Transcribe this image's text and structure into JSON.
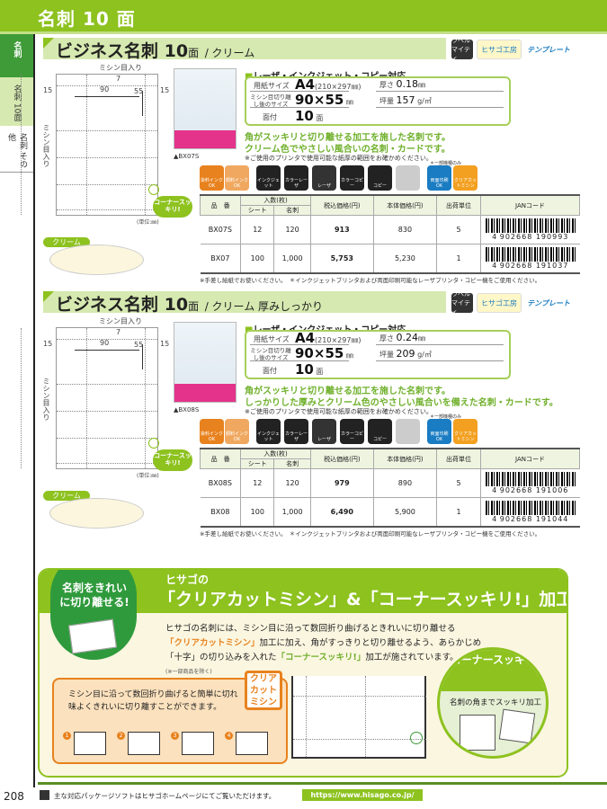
{
  "header": {
    "title": "名刺 10 面"
  },
  "side_tabs": [
    {
      "label": "名刺"
    },
    {
      "label": "名刺 10面"
    },
    {
      "label": "名刺 その他"
    }
  ],
  "logos": {
    "label_software": "ラベルマイティ",
    "hisago_kobo": "ヒサゴ工房",
    "template": "テンプレート"
  },
  "sections": [
    {
      "title_main": "ビジネス名刺 10",
      "title_unit": "面",
      "title_sub": "/ クリーム",
      "color_label": "クリーム",
      "diagram": {
        "perforation_top": "ミシン目入り",
        "perforation_side": "ミシン目入り",
        "dim_width": "90",
        "dim_height": "55",
        "dim_gap": "7",
        "margin_left": "15",
        "margin_right": "15",
        "unit": "(単位:㎜)"
      },
      "image_caption": "▲BX07S",
      "compat_heading": "レーザ・インクジェット・コピー対応",
      "specs": {
        "paper_size_label": "用紙サイズ",
        "paper_size": "A4",
        "paper_size_mm": "(210×297㎜)",
        "cut_size_label": "ミシン目切り離し後のサイズ",
        "cut_size": "90×55",
        "cut_unit": "㎜",
        "faces_label": "面付",
        "faces": "10",
        "faces_unit": "面",
        "thickness_label": "厚さ",
        "thickness": "0.18",
        "thickness_unit": "㎜",
        "weight_label": "坪量",
        "weight": "157",
        "weight_unit": "g/㎡"
      },
      "desc": [
        "角がスッキリと切り離せる加工を施した名刺です。",
        "クリーム色でやさしい風合いの名刺・カードです。"
      ],
      "note": "※ご使用のプリンタで使用可能な紙厚の範囲をお確かめください。",
      "corner_badge": "コーナースッキリ!",
      "rows": [
        {
          "code": "BX07S",
          "sheets": "12",
          "cards": "120",
          "price_tax": "913",
          "price": "830",
          "unit": "5",
          "jan_prefix": "4",
          "jan": "902668 190993"
        },
        {
          "code": "BX07",
          "sheets": "100",
          "cards": "1,000",
          "price_tax": "5,753",
          "price": "5,230",
          "unit": "1",
          "jan_prefix": "4",
          "jan": "902668 191037"
        }
      ],
      "footnote": "※手差し給紙でお使いください。　＊インクジェットプリンタおよび両面印刷可能なレーザプリンタ・コピー機をご使用ください。"
    },
    {
      "title_main": "ビジネス名刺 10",
      "title_unit": "面",
      "title_sub": "/ クリーム 厚みしっかり",
      "color_label": "クリーム",
      "diagram": {
        "perforation_top": "ミシン目入り",
        "perforation_side": "ミシン目入り",
        "dim_width": "90",
        "dim_height": "55",
        "dim_gap": "7",
        "margin_left": "15",
        "margin_right": "15",
        "unit": "(単位:㎜)"
      },
      "image_caption": "▲BX08S",
      "compat_heading": "レーザ・インクジェット・コピー対応",
      "specs": {
        "paper_size_label": "用紙サイズ",
        "paper_size": "A4",
        "paper_size_mm": "(210×297㎜)",
        "cut_size_label": "ミシン目切り離し後のサイズ",
        "cut_size": "90×55",
        "cut_unit": "㎜",
        "faces_label": "面付",
        "faces": "10",
        "faces_unit": "面",
        "thickness_label": "厚さ",
        "thickness": "0.24",
        "thickness_unit": "㎜",
        "weight_label": "坪量",
        "weight": "209",
        "weight_unit": "g/㎡"
      },
      "desc": [
        "角がスッキリと切り離せる加工を施した名刺です。",
        "しっかりした厚みとクリーム色のやさしい風合いを備えた名刺・カードです。"
      ],
      "note": "※ご使用のプリンタで使用可能な紙厚の範囲をお確かめください。",
      "corner_badge": "コーナースッキリ!",
      "rows": [
        {
          "code": "BX08S",
          "sheets": "12",
          "cards": "120",
          "price_tax": "979",
          "price": "890",
          "unit": "5",
          "jan_prefix": "4",
          "jan": "902668 191006"
        },
        {
          "code": "BX08",
          "sheets": "100",
          "cards": "1,000",
          "price_tax": "6,490",
          "price": "5,900",
          "unit": "1",
          "jan_prefix": "4",
          "jan": "902668 191044"
        }
      ],
      "footnote": "※手差し給紙でお使いください。　＊インクジェットプリンタおよび両面印刷可能なレーザプリンタ・コピー機をご使用ください。"
    }
  ],
  "icons": [
    {
      "label": "染料インクOK",
      "color": "#e8821e"
    },
    {
      "label": "顔料インクOK",
      "color": "#f0a860"
    },
    {
      "label": "インクジェット",
      "color": "#222"
    },
    {
      "label": "カラーレーザ",
      "color": "#222"
    },
    {
      "label": "レーザ",
      "color": "#333"
    },
    {
      "label": "カラーコピー",
      "color": "#222"
    },
    {
      "label": "コピー",
      "color": "#222"
    },
    {
      "label": "",
      "color": "#ccc"
    },
    {
      "label": "両面印刷OK",
      "color": "#1a7cc2"
    },
    {
      "label": "クリアカットミシン",
      "color": "#f3a020"
    }
  ],
  "icon_note": "＊一部機種のみ",
  "table_headers": {
    "code": "品　番",
    "qty": "入数(枚)",
    "sheets": "シート",
    "cards": "名刺",
    "price_tax": "税込価格(円)",
    "price": "本体価格(円)",
    "unit": "出荷単位",
    "jan": "JANコード"
  },
  "promo": {
    "badge": "名刺をきれいに切り離せる!",
    "title_small": "ヒサゴの",
    "title": "「クリアカットミシン」&「コーナースッキリ!」加工",
    "body_1": "ヒサゴの名刺には、ミシン目に沿って数回折り曲げるときれいに切り離せる",
    "body_2a": "「クリアカットミシン」",
    "body_2b": "加工に加え、角がすっきりと切り離せるよう、あらかじめ",
    "body_3a": "「十字」の切り込みを入れた",
    "body_3b": "「コーナースッキリ!」",
    "body_3c": "加工が施されています。",
    "body_note": "(※一部商品を除く)",
    "clear_cut_text": "ミシン目に沿って数回折り曲げると簡単に切れ味よくきれいに切り離すことができます。",
    "clear_cut_badge": "クリアカットミシン",
    "steps": [
      "1",
      "2",
      "3",
      "4"
    ],
    "corner_title": "コーナースッキリ!",
    "corner_text": "名刺の角までスッキリ加工"
  },
  "footer": {
    "page": "208",
    "text": "主な対応パッケージソフトはヒサゴホームページにてご覧いただけます。",
    "url": "https://www.hisago.co.jp/"
  },
  "colors": {
    "brand_green": "#8dc21f",
    "dark_green": "#2f9a3c",
    "orange": "#e8821e"
  }
}
